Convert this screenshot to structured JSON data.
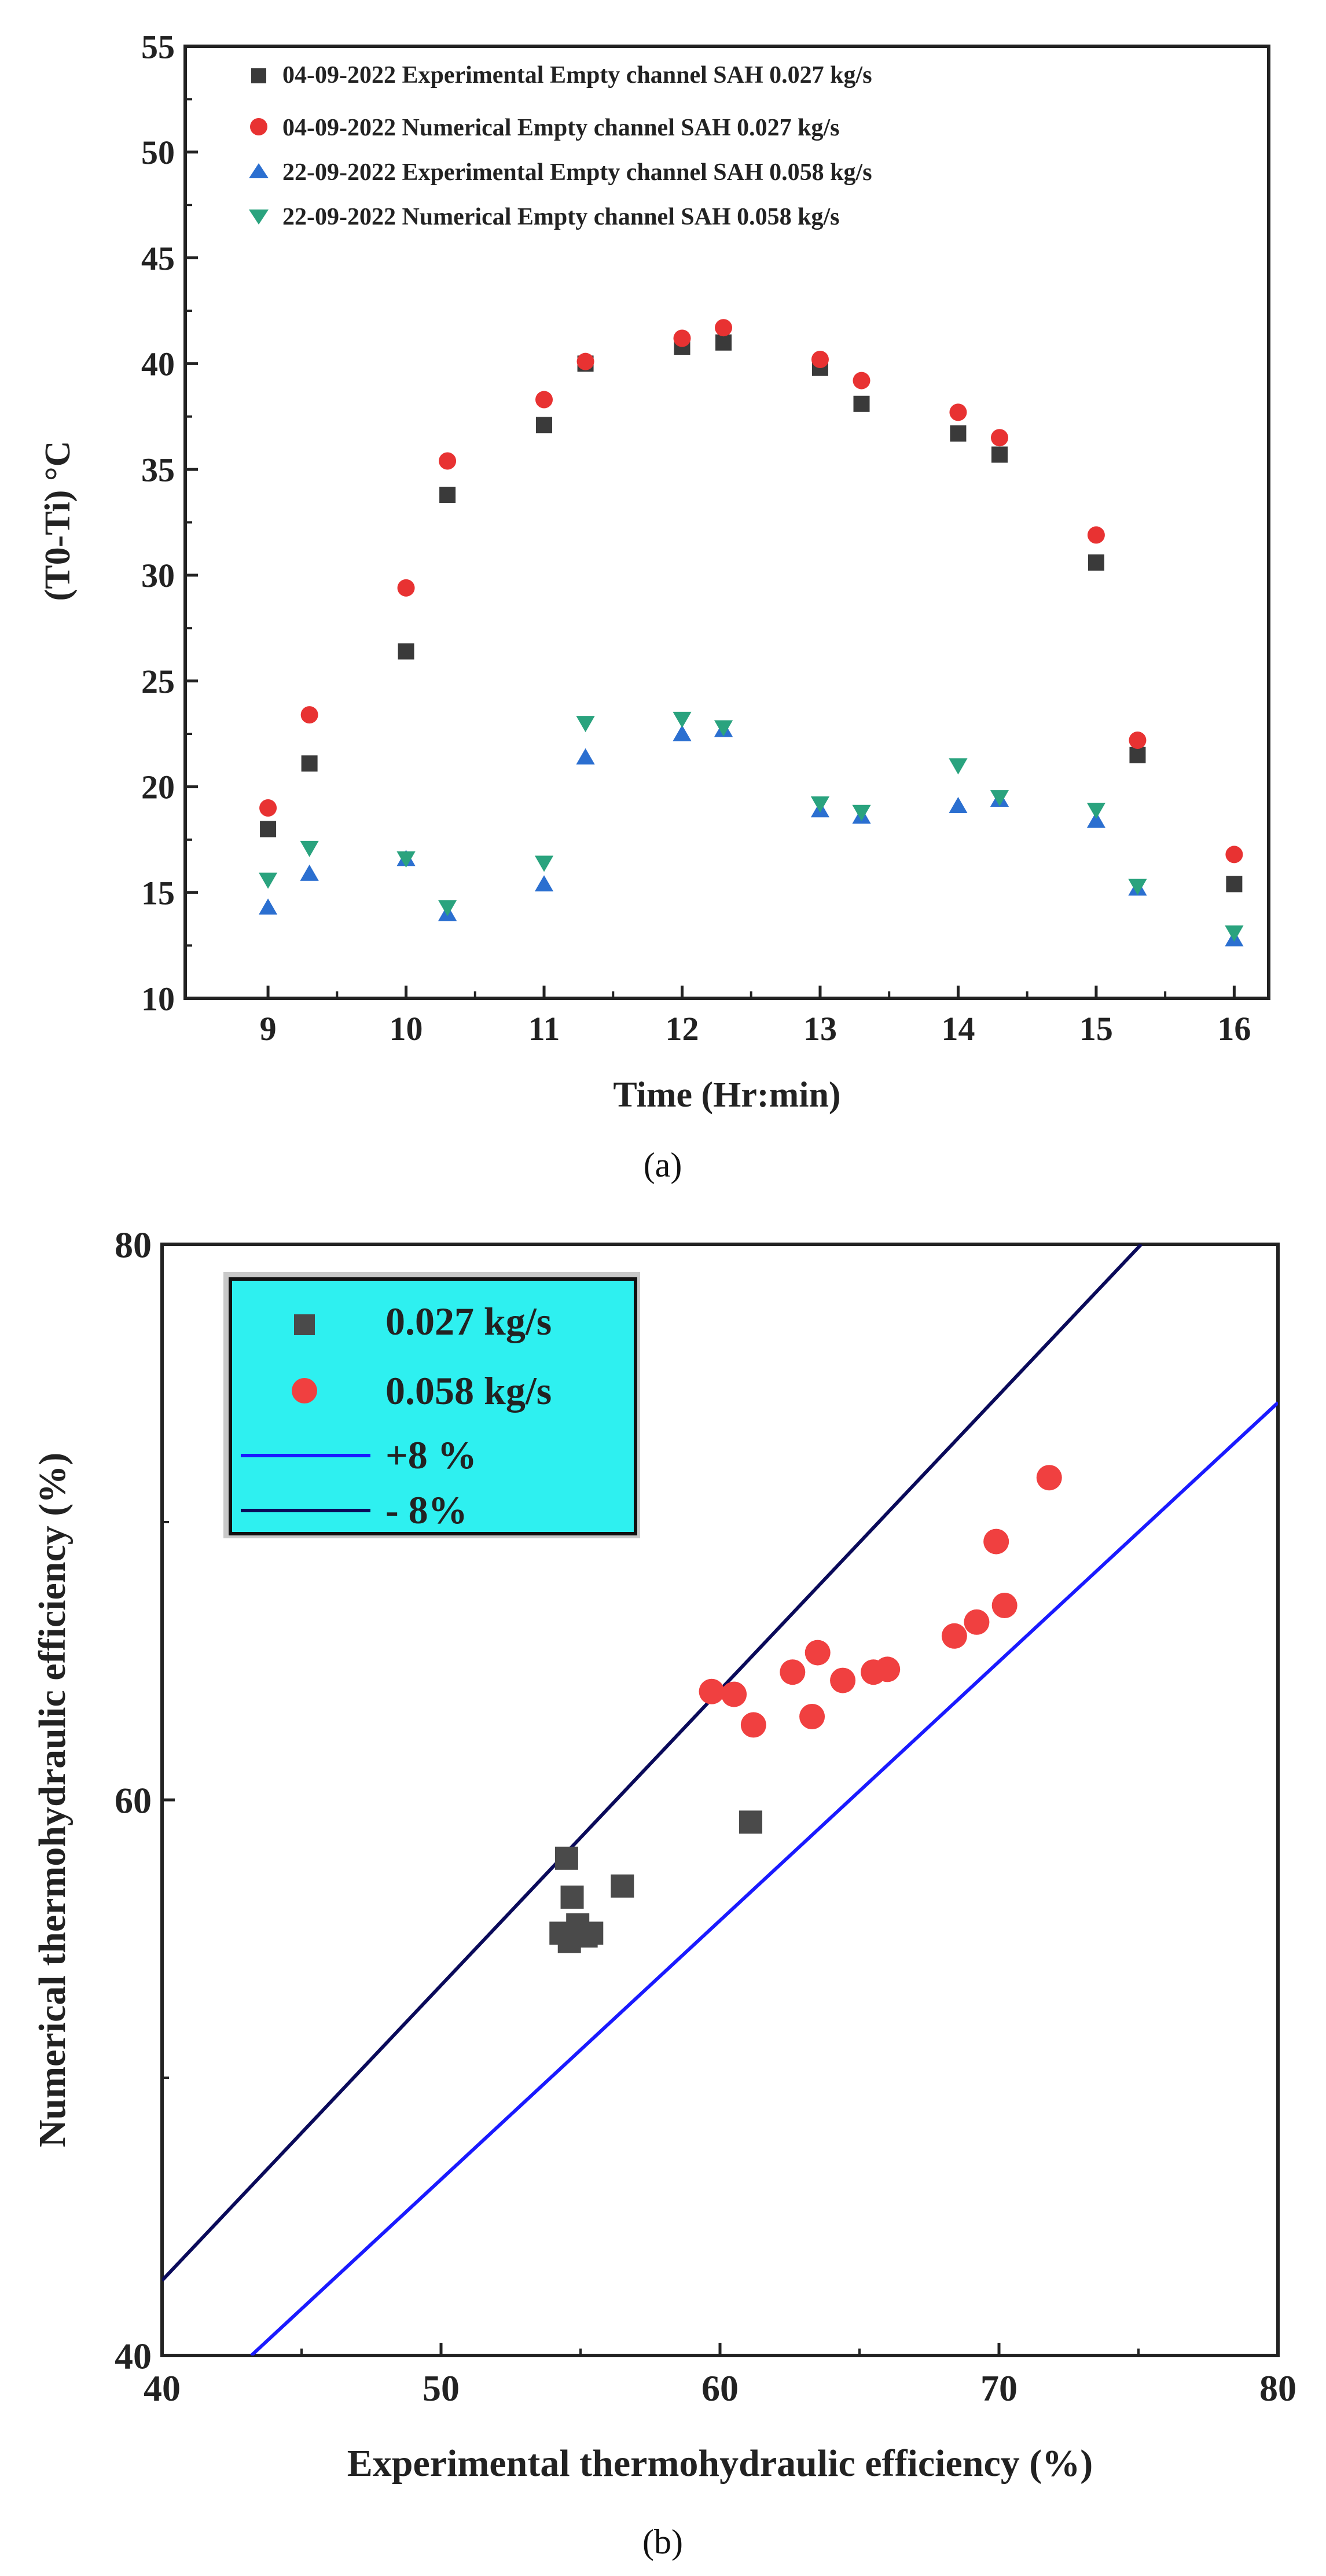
{
  "chart_data": [
    {
      "type": "scatter",
      "panel_label": "(a)",
      "xlabel": "Time (Hr:min)",
      "ylabel": "(T0-Ti) °C",
      "xlim": [
        8.4,
        16.25
      ],
      "ylim": [
        10,
        55
      ],
      "x_ticks": [
        9,
        10,
        11,
        12,
        13,
        14,
        15,
        16
      ],
      "y_ticks": [
        10,
        15,
        20,
        25,
        30,
        35,
        40,
        45,
        50,
        55
      ],
      "grid": false,
      "legend_position": "top",
      "series": [
        {
          "name": "04-09-2022 Experimental Empty channel SAH 0.027 kg/s",
          "marker": "square",
          "color": "#3a3a3a",
          "x": [
            9.0,
            9.3,
            10.0,
            10.3,
            11.0,
            11.3,
            12.0,
            12.3,
            13.0,
            13.3,
            14.0,
            14.3,
            15.0,
            15.3,
            16.0
          ],
          "y": [
            18.0,
            21.1,
            26.4,
            33.8,
            37.1,
            40.0,
            40.8,
            41.0,
            39.8,
            38.1,
            36.7,
            35.7,
            30.6,
            21.5,
            15.4
          ]
        },
        {
          "name": "04-09-2022 Numerical Empty channel SAH 0.027 kg/s",
          "marker": "circle",
          "color": "#e83232",
          "x": [
            9.0,
            9.3,
            10.0,
            10.3,
            11.0,
            11.3,
            12.0,
            12.3,
            13.0,
            13.3,
            14.0,
            14.3,
            15.0,
            15.3,
            16.0
          ],
          "y": [
            19.0,
            23.4,
            29.4,
            35.4,
            38.3,
            40.1,
            41.2,
            41.7,
            40.2,
            39.2,
            37.7,
            36.5,
            31.9,
            22.2,
            16.8
          ]
        },
        {
          "name": "22-09-2022 Experimental Empty channel SAH 0.058 kg/s",
          "marker": "triangle-up",
          "color": "#2b6fd0",
          "x": [
            9.0,
            9.3,
            10.0,
            10.3,
            11.0,
            11.3,
            12.0,
            12.3,
            13.0,
            13.3,
            14.0,
            14.3,
            15.0,
            15.3,
            16.0
          ],
          "y": [
            14.3,
            15.9,
            16.6,
            14.0,
            15.4,
            21.4,
            22.5,
            22.7,
            18.9,
            18.6,
            19.1,
            19.4,
            18.4,
            15.2,
            12.8
          ]
        },
        {
          "name": "22-09-2022 Numerical Empty channel SAH 0.058 kg/s",
          "marker": "triangle-down",
          "color": "#2aa37e",
          "x": [
            9.0,
            9.3,
            10.0,
            10.3,
            11.0,
            11.3,
            12.0,
            12.3,
            13.0,
            13.3,
            14.0,
            14.3,
            15.0,
            15.3,
            16.0
          ],
          "y": [
            15.6,
            17.1,
            16.6,
            14.3,
            16.4,
            23.0,
            23.2,
            22.8,
            19.2,
            18.8,
            21.0,
            19.5,
            18.9,
            15.3,
            13.1
          ]
        }
      ]
    },
    {
      "type": "scatter",
      "panel_label": "(b)",
      "xlabel": "Experimental thermohydraulic efficiency (%)",
      "ylabel": "Numerical thermohydraulic efficiency (%)",
      "xlim": [
        40,
        80
      ],
      "ylim": [
        40,
        80
      ],
      "x_ticks": [
        40,
        50,
        60,
        70,
        80
      ],
      "y_ticks": [
        40,
        60,
        80
      ],
      "grid": false,
      "legend_position": "top-left",
      "legend_background": "#2ef0f0",
      "series": [
        {
          "name": "0.027 kg/s",
          "marker": "square",
          "color": "#4a4a4a",
          "x": [
            54.5,
            54.7,
            56.5,
            61.1,
            54.3,
            54.9,
            55.2,
            54.6,
            55.4
          ],
          "y": [
            57.9,
            56.5,
            56.9,
            59.2,
            55.2,
            55.5,
            55.1,
            54.9,
            55.2
          ]
        },
        {
          "name": "0.058 kg/s",
          "marker": "circle",
          "color": "#f04040",
          "x": [
            59.7,
            60.5,
            61.2,
            62.6,
            63.3,
            63.5,
            64.4,
            65.5,
            66.0,
            68.4,
            69.2,
            69.9,
            70.2,
            71.8
          ],
          "y": [
            63.9,
            63.8,
            62.7,
            64.6,
            63.0,
            65.3,
            64.3,
            64.6,
            64.7,
            65.9,
            66.4,
            69.3,
            67.0,
            71.6
          ]
        },
        {
          "name": "+8 %",
          "type": "line",
          "color": "#1a1aff",
          "x": [
            43.2,
            80
          ],
          "y": [
            40,
            74.3
          ]
        },
        {
          "name": "- 8%",
          "type": "line",
          "color": "#0a0a5a",
          "x": [
            40,
            75.1
          ],
          "y": [
            42.7,
            80
          ]
        }
      ]
    }
  ]
}
